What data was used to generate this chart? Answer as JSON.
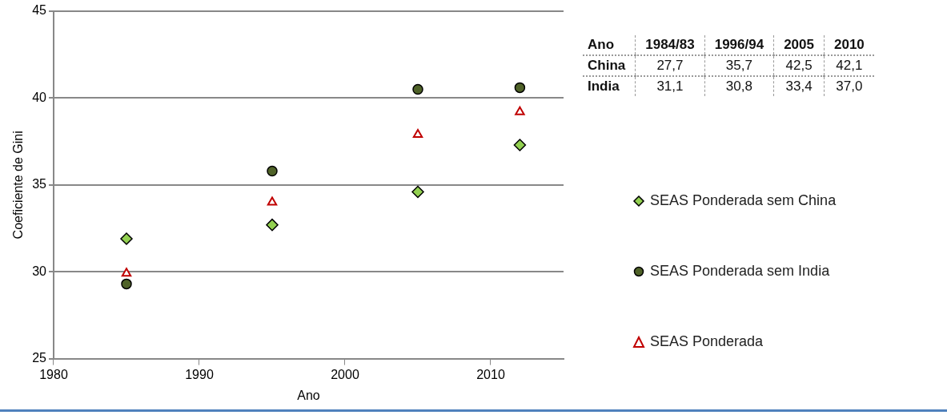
{
  "chart_data": [
    {
      "type": "scatter",
      "xlabel": "Ano",
      "ylabel": "Coeficiente de Gini",
      "xlim": [
        1980,
        2015
      ],
      "xticks": [
        1980,
        1990,
        2000,
        2010
      ],
      "ylim": [
        25,
        45
      ],
      "yticks": [
        25,
        30,
        35,
        40,
        45
      ],
      "grid": "y",
      "legend": "right",
      "series": [
        {
          "name": "SEAS Ponderada sem China",
          "color": "#92d050",
          "marker": "diamond",
          "x": [
            1985,
            1995,
            2005,
            2012
          ],
          "values": [
            31.9,
            32.7,
            34.6,
            37.3
          ]
        },
        {
          "name": "SEAS Ponderada sem India",
          "color": "#4f6228",
          "marker": "circle",
          "x": [
            1985,
            1995,
            2005,
            2012
          ],
          "values": [
            29.3,
            35.8,
            40.5,
            40.6
          ]
        },
        {
          "name": "SEAS Ponderada",
          "color": "#c00000",
          "marker": "triangle",
          "x": [
            1985,
            1995,
            2005,
            2012
          ],
          "values": [
            29.9,
            34.0,
            37.9,
            39.2
          ]
        }
      ]
    },
    {
      "type": "other",
      "title": "Ano",
      "categories": [
        "1984/83",
        "1996/94",
        "2005",
        "2010"
      ],
      "y_categories": [
        "China",
        "India"
      ],
      "cell_labels": [
        [
          "27,7",
          "35,7",
          "42,5",
          "42,1"
        ],
        [
          "31,1",
          "30,8",
          "33,4",
          "37,0"
        ]
      ]
    }
  ]
}
